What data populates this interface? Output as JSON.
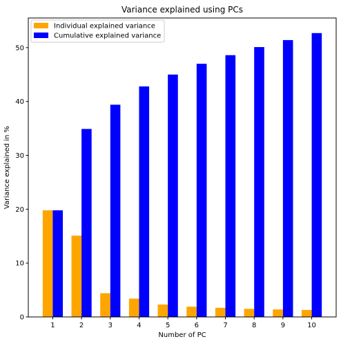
{
  "chart_data": {
    "type": "bar",
    "title": "Variance explained using PCs",
    "xlabel": "Number of PC",
    "ylabel": "Variance explained in %",
    "categories": [
      "1",
      "2",
      "3",
      "4",
      "5",
      "6",
      "7",
      "8",
      "9",
      "10"
    ],
    "ylim": [
      0,
      55.5
    ],
    "yticks": [
      0,
      10,
      20,
      30,
      40,
      50
    ],
    "grid": false,
    "legend_position": "top-left",
    "series": [
      {
        "name": "Individual explained variance",
        "color": "#ffa500",
        "values": [
          19.8,
          15.1,
          4.4,
          3.4,
          2.3,
          1.9,
          1.7,
          1.5,
          1.4,
          1.3
        ]
      },
      {
        "name": "Cumulative explained variance",
        "color": "#0000ff",
        "values": [
          19.8,
          34.9,
          39.4,
          42.8,
          45.0,
          47.0,
          48.6,
          50.1,
          51.4,
          52.7
        ]
      }
    ]
  }
}
